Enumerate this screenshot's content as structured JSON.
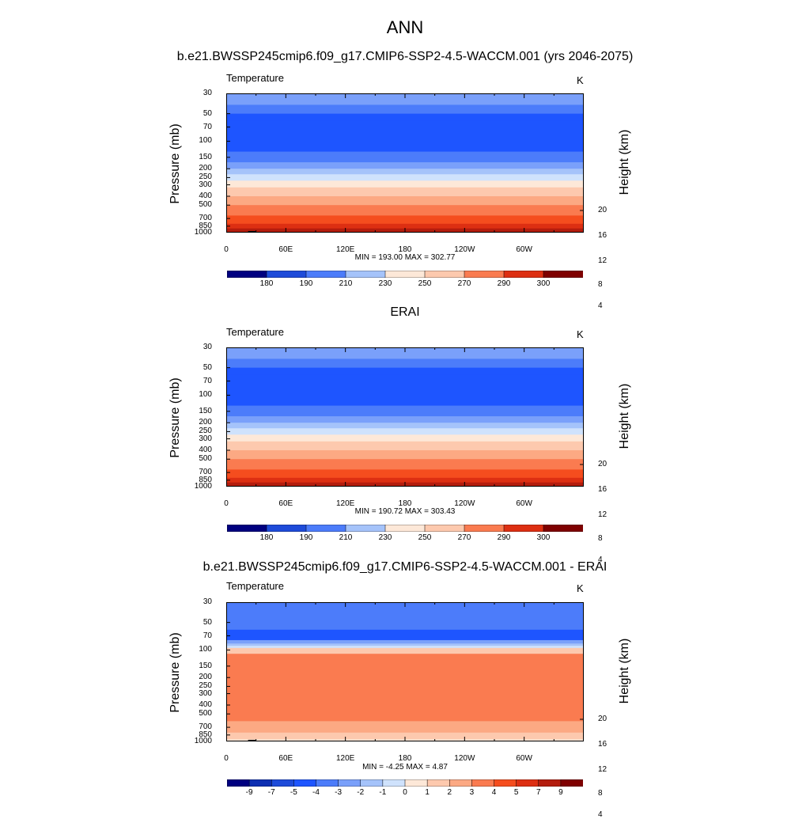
{
  "title": "ANN",
  "colors": {
    "scale": [
      "#000080",
      "#0d2fb2",
      "#1e4bd9",
      "#1e55ff",
      "#4c7cfa",
      "#7aa0fa",
      "#a5c3fa",
      "#cfe2fc",
      "#fde8d8",
      "#fdc9ae",
      "#fca983",
      "#fa7b50",
      "#f54d1e",
      "#dd2f12",
      "#b41d0e",
      "#7f0000"
    ],
    "topography": "#000000"
  },
  "common": {
    "variable": "Temperature",
    "units": "K",
    "ylabel": "Pressure (mb)",
    "ylabel_right": "Height (km)",
    "xticks": [
      "0",
      "60E",
      "120E",
      "180",
      "120W",
      "60W"
    ],
    "pressure_ticks": [
      "30",
      "50",
      "70",
      "100",
      "150",
      "200",
      "250",
      "300",
      "400",
      "500",
      "700",
      "850",
      "1000"
    ],
    "height_ticks": [
      "20",
      "16",
      "12",
      "8",
      "4"
    ]
  },
  "chart_data": [
    {
      "type": "heatmap",
      "title": "b.e21.BWSSP245cmip6.f09_g17.CMIP6-SSP2-4.5-WACCM.001 (yrs 2046-2075)",
      "stats": "MIN = 193.00  MAX = 302.77",
      "min": 193.0,
      "max": 302.77,
      "colorbar_labels": [
        "180",
        "190",
        "210",
        "230",
        "250",
        "270",
        "290",
        "300"
      ],
      "bands": [
        {
          "p": 30,
          "color_index": 5
        },
        {
          "p": 40,
          "color_index": 4
        },
        {
          "p": 50,
          "color_index": 3
        },
        {
          "p": 60,
          "color_index": 3
        },
        {
          "p": 100,
          "color_index": 3
        },
        {
          "p": 130,
          "color_index": 4
        },
        {
          "p": 170,
          "color_index": 5
        },
        {
          "p": 200,
          "color_index": 6
        },
        {
          "p": 230,
          "color_index": 7
        },
        {
          "p": 270,
          "color_index": 8
        },
        {
          "p": 320,
          "color_index": 9
        },
        {
          "p": 400,
          "color_index": 10
        },
        {
          "p": 500,
          "color_index": 11
        },
        {
          "p": 650,
          "color_index": 12
        },
        {
          "p": 800,
          "color_index": 13
        },
        {
          "p": 900,
          "color_index": 14
        }
      ],
      "topography": [
        {
          "lon": [
            10,
            22
          ],
          "p": 985
        },
        {
          "lon": [
            22,
            30
          ],
          "p": 960
        },
        {
          "lon": [
            30,
            35
          ],
          "p": 985
        },
        {
          "lon": [
            100,
            102
          ],
          "p": 985
        },
        {
          "lon": [
            112,
            113
          ],
          "p": 985
        },
        {
          "lon": [
            283,
            297
          ],
          "p": 985
        }
      ]
    },
    {
      "type": "heatmap",
      "title": "ERAI",
      "stats": "MIN = 190.72  MAX = 303.43",
      "min": 190.72,
      "max": 303.43,
      "colorbar_labels": [
        "180",
        "190",
        "210",
        "230",
        "250",
        "270",
        "290",
        "300"
      ],
      "bands": [
        {
          "p": 30,
          "color_index": 5
        },
        {
          "p": 40,
          "color_index": 4
        },
        {
          "p": 50,
          "color_index": 3
        },
        {
          "p": 60,
          "color_index": 3
        },
        {
          "p": 100,
          "color_index": 3
        },
        {
          "p": 130,
          "color_index": 4
        },
        {
          "p": 170,
          "color_index": 5
        },
        {
          "p": 200,
          "color_index": 6
        },
        {
          "p": 230,
          "color_index": 7
        },
        {
          "p": 270,
          "color_index": 8
        },
        {
          "p": 320,
          "color_index": 9
        },
        {
          "p": 400,
          "color_index": 10
        },
        {
          "p": 500,
          "color_index": 11
        },
        {
          "p": 650,
          "color_index": 12
        },
        {
          "p": 800,
          "color_index": 13
        },
        {
          "p": 900,
          "color_index": 14
        }
      ],
      "topography": []
    },
    {
      "type": "heatmap",
      "title": "b.e21.BWSSP245cmip6.f09_g17.CMIP6-SSP2-4.5-WACCM.001 - ERAI",
      "stats": "MIN =  -4.25  MAX =   4.87",
      "min": -4.25,
      "max": 4.87,
      "colorbar_labels": [
        "-9",
        "-7",
        "-5",
        "-4",
        "-3",
        "-2",
        "-1",
        "0",
        "1",
        "2",
        "3",
        "4",
        "5",
        "7",
        "9"
      ],
      "bands": [
        {
          "p": 30,
          "color_index": 4
        },
        {
          "p": 60,
          "color_index": 3
        },
        {
          "p": 78,
          "color_index": 5
        },
        {
          "p": 85,
          "color_index": 6
        },
        {
          "p": 90,
          "color_index": 7
        },
        {
          "p": 95,
          "color_index": 9
        },
        {
          "p": 110,
          "color_index": 11
        },
        {
          "p": 600,
          "color_index": 10
        },
        {
          "p": 800,
          "color_index": 9
        },
        {
          "p": 950,
          "color_index": 8
        }
      ],
      "topography": [
        {
          "lon": [
            10,
            22
          ],
          "p": 985
        },
        {
          "lon": [
            22,
            30
          ],
          "p": 960
        },
        {
          "lon": [
            30,
            35
          ],
          "p": 985
        },
        {
          "lon": [
            100,
            102
          ],
          "p": 985
        },
        {
          "lon": [
            112,
            113
          ],
          "p": 985
        },
        {
          "lon": [
            283,
            297
          ],
          "p": 985
        }
      ]
    }
  ]
}
